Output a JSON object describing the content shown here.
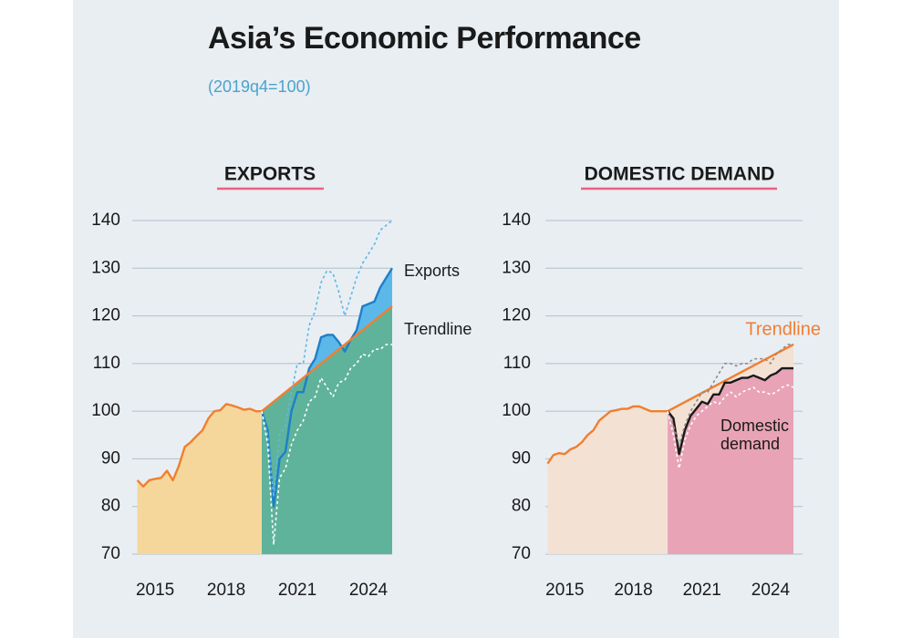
{
  "title": "Asia’s Economic Performance",
  "subtitle": "(2019q4=100)",
  "chart_data": [
    {
      "type": "line",
      "title": "EXPORTS",
      "xlim": [
        2014.15,
        2025.0
      ],
      "ylim": [
        70,
        140
      ],
      "xticks": [
        2015,
        2018,
        2021,
        2024
      ],
      "yticks": [
        70,
        80,
        90,
        100,
        110,
        120,
        130,
        140
      ],
      "grid": true,
      "series": [
        {
          "color": "#f07f30",
          "fill": "#f5d79c",
          "style": "solid",
          "x": [
            2014.25,
            2014.5,
            2014.75,
            2015.0,
            2015.25,
            2015.5,
            2015.75,
            2016.0,
            2016.25,
            2016.5,
            2016.75,
            2017.0,
            2017.25,
            2017.5,
            2017.75,
            2018.0,
            2018.25,
            2018.5,
            2018.75,
            2019.0,
            2019.25,
            2019.5
          ],
          "values": [
            85.5,
            84.2,
            85.5,
            85.8,
            86,
            87.5,
            85.5,
            88.5,
            92.5,
            93.5,
            94.8,
            96,
            98.5,
            100,
            100.2,
            101.5,
            101.2,
            100.8,
            100.3,
            100.5,
            100,
            100
          ]
        },
        {
          "name": "Exports",
          "color": "#1e7fc8",
          "fill": "#5cb8e8",
          "style": "solid",
          "x": [
            2019.5,
            2019.75,
            2020.0,
            2020.25,
            2020.5,
            2020.75,
            2021.0,
            2021.25,
            2021.5,
            2021.75,
            2022.0,
            2022.25,
            2022.5,
            2022.75,
            2023.0,
            2023.25,
            2023.5,
            2023.75,
            2024.0,
            2024.25,
            2024.5,
            2024.75,
            2025.0
          ],
          "values": [
            100,
            96,
            80,
            90,
            91.5,
            100,
            104,
            104,
            109,
            111,
            115.5,
            116,
            116,
            114.5,
            112.5,
            115,
            117,
            122,
            122.5,
            123,
            126,
            128,
            130
          ]
        },
        {
          "name": "Trendline",
          "color": "#f07f30",
          "fill": "#5fb39a",
          "style": "solid",
          "x": [
            2019.5,
            2025.0
          ],
          "values": [
            100,
            122
          ]
        },
        {
          "color": "#5cb8e8",
          "style": "dotted",
          "x": [
            2019.5,
            2019.75,
            2020.0,
            2020.25,
            2020.5,
            2020.75,
            2021.0,
            2021.25,
            2021.5,
            2021.75,
            2022.0,
            2022.25,
            2022.5,
            2022.75,
            2023.0,
            2023.25,
            2023.5,
            2023.75,
            2024.0,
            2024.25,
            2024.5,
            2024.75,
            2025.0
          ],
          "values": [
            100,
            95,
            82,
            95,
            97,
            104,
            110,
            110,
            118,
            121,
            127,
            129.5,
            129,
            125,
            120,
            124,
            128,
            131,
            133,
            135,
            138,
            139,
            140
          ]
        },
        {
          "color": "#ffffff",
          "style": "dotted",
          "x": [
            2019.5,
            2019.75,
            2020.0,
            2020.25,
            2020.5,
            2020.75,
            2021.0,
            2021.25,
            2021.5,
            2021.75,
            2022.0,
            2022.25,
            2022.5,
            2022.75,
            2023.0,
            2023.25,
            2023.5,
            2023.75,
            2024.0,
            2024.25,
            2024.5,
            2024.75,
            2025.0
          ],
          "values": [
            100,
            93,
            72,
            86,
            88,
            93,
            96,
            98,
            102,
            103,
            107,
            105,
            103,
            106,
            106.5,
            109,
            110,
            112,
            111.5,
            113,
            113,
            114,
            114
          ]
        }
      ]
    },
    {
      "type": "line",
      "title": "DOMESTIC DEMAND",
      "xlim": [
        2014.15,
        2025.0
      ],
      "ylim": [
        70,
        140
      ],
      "xticks": [
        2015,
        2018,
        2021,
        2024
      ],
      "yticks": [
        70,
        80,
        90,
        100,
        110,
        120,
        130,
        140
      ],
      "grid": true,
      "series": [
        {
          "color": "#f07f30",
          "fill": "#f3e1d3",
          "style": "solid",
          "x": [
            2014.25,
            2014.5,
            2014.75,
            2015.0,
            2015.25,
            2015.5,
            2015.75,
            2016.0,
            2016.25,
            2016.5,
            2016.75,
            2017.0,
            2017.25,
            2017.5,
            2017.75,
            2018.0,
            2018.25,
            2018.5,
            2018.75,
            2019.0,
            2019.25,
            2019.5
          ],
          "values": [
            89,
            90.8,
            91.2,
            91,
            92,
            92.5,
            93.5,
            95,
            96,
            98,
            99,
            100,
            100.2,
            100.5,
            100.5,
            101,
            101,
            100.5,
            100,
            100,
            100,
            100
          ]
        },
        {
          "name": "Trendline",
          "color": "#f07f30",
          "fill": "#f3e1d3",
          "style": "solid",
          "x": [
            2019.5,
            2025.0
          ],
          "values": [
            100,
            114
          ]
        },
        {
          "name": "Domestic demand",
          "color": "#1a1a1a",
          "fill": "#e9a3b7",
          "style": "solid",
          "x": [
            2019.5,
            2019.75,
            2020.0,
            2020.25,
            2020.5,
            2020.75,
            2021.0,
            2021.25,
            2021.5,
            2021.75,
            2022.0,
            2022.25,
            2022.5,
            2022.75,
            2023.0,
            2023.25,
            2023.5,
            2023.75,
            2024.0,
            2024.25,
            2024.5,
            2024.75,
            2025.0
          ],
          "values": [
            100,
            98.5,
            91,
            96,
            99,
            100.5,
            102,
            101.5,
            103.5,
            103.5,
            106,
            106,
            106.5,
            107,
            107,
            107.5,
            107,
            106.5,
            107.5,
            108,
            109,
            109,
            109
          ]
        },
        {
          "color": "#8a8a8a",
          "style": "dotted",
          "x": [
            2019.5,
            2019.75,
            2020.0,
            2020.25,
            2020.5,
            2020.75,
            2021.0,
            2021.25,
            2021.5,
            2021.75,
            2022.0,
            2022.25,
            2022.5,
            2022.75,
            2023.0,
            2023.25,
            2023.5,
            2023.75,
            2024.0,
            2024.25,
            2024.5,
            2024.75,
            2025.0
          ],
          "values": [
            100,
            97,
            93,
            97,
            100,
            102,
            104,
            104,
            106,
            108,
            110,
            110,
            109.5,
            110,
            110,
            111,
            111,
            111,
            110,
            112,
            113,
            114,
            114
          ]
        },
        {
          "color": "#ffffff",
          "style": "dotted",
          "x": [
            2019.5,
            2019.75,
            2020.0,
            2020.25,
            2020.5,
            2020.75,
            2021.0,
            2021.25,
            2021.5,
            2021.75,
            2022.0,
            2022.25,
            2022.5,
            2022.75,
            2023.0,
            2023.25,
            2023.5,
            2023.75,
            2024.0,
            2024.25,
            2024.5,
            2024.75,
            2025.0
          ],
          "values": [
            100,
            95,
            88,
            94,
            97,
            99,
            100,
            101,
            102,
            101.5,
            103,
            104,
            103,
            104,
            104.5,
            105,
            104,
            104,
            103.5,
            104,
            105,
            105.5,
            105
          ]
        }
      ]
    }
  ]
}
